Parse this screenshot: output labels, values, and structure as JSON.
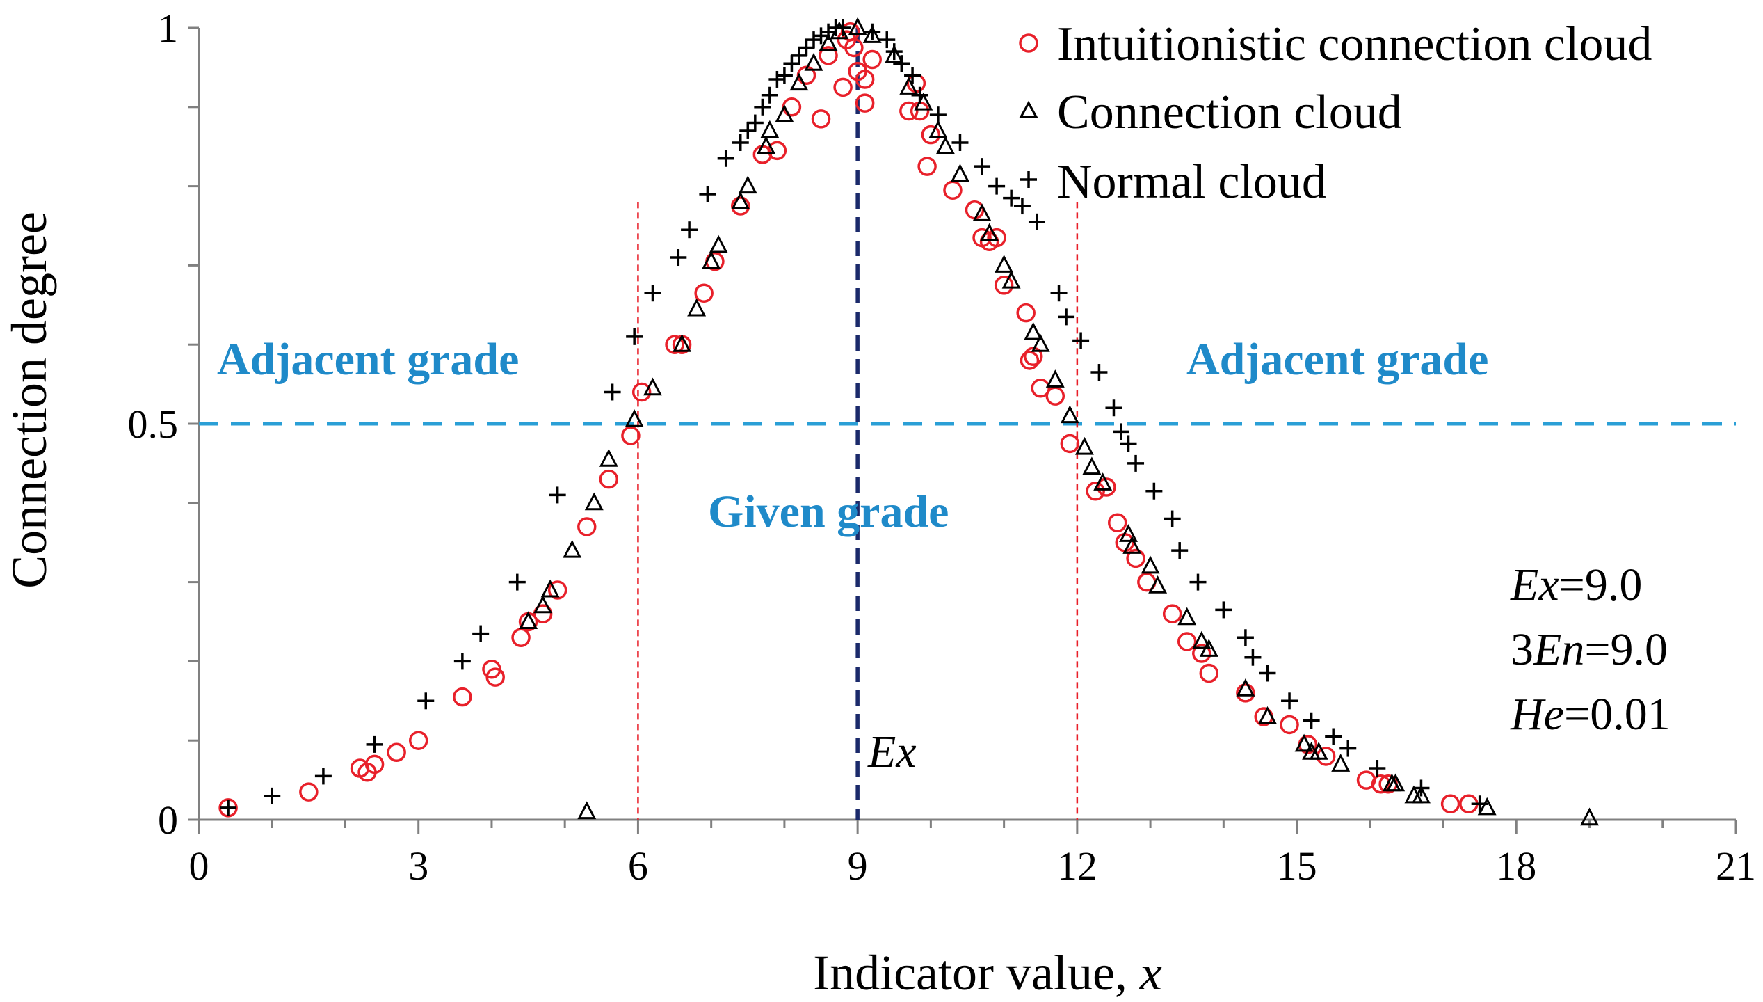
{
  "chart_data": {
    "type": "scatter",
    "title": "",
    "xlabel_main": "Indicator value, ",
    "xlabel_var": "x",
    "ylabel": "Connection degree",
    "xlim": [
      0,
      21
    ],
    "ylim": [
      0,
      1
    ],
    "x_ticks": [
      0,
      3,
      6,
      9,
      12,
      15,
      18,
      21
    ],
    "y_ticks": [
      {
        "value": 0,
        "label": "0"
      },
      {
        "value": 0.5,
        "label": "0.5"
      },
      {
        "value": 1,
        "label": "1"
      }
    ],
    "legend_position": "top-right",
    "series": [
      {
        "name": "Intuitionistic connection cloud",
        "marker": "circle",
        "color": "#e8202a",
        "points": [
          [
            0.4,
            0.015
          ],
          [
            1.5,
            0.035
          ],
          [
            2.2,
            0.065
          ],
          [
            2.3,
            0.06
          ],
          [
            2.4,
            0.07
          ],
          [
            2.7,
            0.085
          ],
          [
            3.0,
            0.1
          ],
          [
            3.6,
            0.155
          ],
          [
            4.0,
            0.19
          ],
          [
            4.05,
            0.18
          ],
          [
            4.4,
            0.23
          ],
          [
            4.5,
            0.25
          ],
          [
            4.7,
            0.26
          ],
          [
            4.9,
            0.29
          ],
          [
            5.3,
            0.37
          ],
          [
            5.6,
            0.43
          ],
          [
            5.9,
            0.485
          ],
          [
            6.05,
            0.54
          ],
          [
            6.5,
            0.6
          ],
          [
            6.6,
            0.6
          ],
          [
            6.9,
            0.665
          ],
          [
            7.05,
            0.705
          ],
          [
            7.4,
            0.775
          ],
          [
            7.7,
            0.84
          ],
          [
            7.9,
            0.845
          ],
          [
            8.1,
            0.9
          ],
          [
            8.3,
            0.94
          ],
          [
            8.5,
            0.885
          ],
          [
            8.6,
            0.965
          ],
          [
            8.8,
            0.925
          ],
          [
            8.85,
            0.985
          ],
          [
            8.9,
            0.995
          ],
          [
            8.95,
            0.975
          ],
          [
            9.0,
            0.945
          ],
          [
            9.1,
            0.935
          ],
          [
            9.1,
            0.905
          ],
          [
            9.2,
            0.96
          ],
          [
            9.7,
            0.895
          ],
          [
            9.8,
            0.93
          ],
          [
            9.85,
            0.895
          ],
          [
            9.95,
            0.825
          ],
          [
            10.0,
            0.865
          ],
          [
            10.3,
            0.795
          ],
          [
            10.6,
            0.77
          ],
          [
            10.7,
            0.735
          ],
          [
            10.8,
            0.73
          ],
          [
            10.9,
            0.735
          ],
          [
            11.0,
            0.675
          ],
          [
            11.3,
            0.64
          ],
          [
            11.35,
            0.58
          ],
          [
            11.4,
            0.585
          ],
          [
            11.5,
            0.545
          ],
          [
            11.7,
            0.535
          ],
          [
            11.9,
            0.475
          ],
          [
            12.25,
            0.415
          ],
          [
            12.4,
            0.42
          ],
          [
            12.55,
            0.375
          ],
          [
            12.65,
            0.35
          ],
          [
            12.8,
            0.33
          ],
          [
            12.95,
            0.3
          ],
          [
            13.3,
            0.26
          ],
          [
            13.5,
            0.225
          ],
          [
            13.7,
            0.21
          ],
          [
            13.8,
            0.185
          ],
          [
            14.3,
            0.16
          ],
          [
            14.55,
            0.13
          ],
          [
            14.9,
            0.12
          ],
          [
            15.15,
            0.095
          ],
          [
            15.4,
            0.08
          ],
          [
            15.95,
            0.05
          ],
          [
            16.15,
            0.045
          ],
          [
            16.25,
            0.045
          ],
          [
            17.1,
            0.02
          ],
          [
            17.35,
            0.02
          ]
        ]
      },
      {
        "name": "Connection cloud",
        "marker": "triangle",
        "color": "#000000",
        "points": [
          [
            5.3,
            0.01
          ],
          [
            4.5,
            0.25
          ],
          [
            4.7,
            0.27
          ],
          [
            4.8,
            0.29
          ],
          [
            5.1,
            0.34
          ],
          [
            5.4,
            0.4
          ],
          [
            5.6,
            0.455
          ],
          [
            5.95,
            0.505
          ],
          [
            6.2,
            0.545
          ],
          [
            6.6,
            0.6
          ],
          [
            6.8,
            0.645
          ],
          [
            7.0,
            0.705
          ],
          [
            7.1,
            0.725
          ],
          [
            7.4,
            0.78
          ],
          [
            7.5,
            0.8
          ],
          [
            7.75,
            0.85
          ],
          [
            7.8,
            0.87
          ],
          [
            8.0,
            0.89
          ],
          [
            8.2,
            0.93
          ],
          [
            8.4,
            0.955
          ],
          [
            8.6,
            0.98
          ],
          [
            8.75,
            0.995
          ],
          [
            9.0,
            1.0
          ],
          [
            9.2,
            0.99
          ],
          [
            9.5,
            0.965
          ],
          [
            9.7,
            0.925
          ],
          [
            9.9,
            0.905
          ],
          [
            10.1,
            0.87
          ],
          [
            10.2,
            0.85
          ],
          [
            10.4,
            0.815
          ],
          [
            10.7,
            0.765
          ],
          [
            10.8,
            0.74
          ],
          [
            11.0,
            0.7
          ],
          [
            11.1,
            0.68
          ],
          [
            11.4,
            0.615
          ],
          [
            11.5,
            0.6
          ],
          [
            11.7,
            0.555
          ],
          [
            11.9,
            0.51
          ],
          [
            12.1,
            0.47
          ],
          [
            12.2,
            0.445
          ],
          [
            12.35,
            0.425
          ],
          [
            12.7,
            0.36
          ],
          [
            12.75,
            0.345
          ],
          [
            13.0,
            0.32
          ],
          [
            13.1,
            0.295
          ],
          [
            13.5,
            0.255
          ],
          [
            13.7,
            0.225
          ],
          [
            13.8,
            0.215
          ],
          [
            14.3,
            0.165
          ],
          [
            14.6,
            0.13
          ],
          [
            15.1,
            0.095
          ],
          [
            15.2,
            0.085
          ],
          [
            15.3,
            0.085
          ],
          [
            15.6,
            0.07
          ],
          [
            16.3,
            0.045
          ],
          [
            16.35,
            0.045
          ],
          [
            16.6,
            0.03
          ],
          [
            16.7,
            0.03
          ],
          [
            17.6,
            0.015
          ],
          [
            19.0,
            0.002
          ]
        ]
      },
      {
        "name": "Normal cloud",
        "marker": "plus",
        "color": "#000000",
        "points": [
          [
            0.4,
            0.015
          ],
          [
            1.0,
            0.03
          ],
          [
            1.7,
            0.055
          ],
          [
            2.4,
            0.095
          ],
          [
            3.1,
            0.15
          ],
          [
            3.6,
            0.2
          ],
          [
            3.85,
            0.235
          ],
          [
            4.35,
            0.3
          ],
          [
            4.9,
            0.41
          ],
          [
            5.65,
            0.54
          ],
          [
            5.95,
            0.61
          ],
          [
            6.2,
            0.665
          ],
          [
            6.55,
            0.71
          ],
          [
            6.7,
            0.745
          ],
          [
            6.95,
            0.79
          ],
          [
            7.2,
            0.835
          ],
          [
            7.4,
            0.855
          ],
          [
            7.5,
            0.87
          ],
          [
            7.6,
            0.88
          ],
          [
            7.7,
            0.9
          ],
          [
            7.8,
            0.915
          ],
          [
            7.9,
            0.935
          ],
          [
            8.0,
            0.94
          ],
          [
            8.1,
            0.955
          ],
          [
            8.2,
            0.965
          ],
          [
            8.3,
            0.975
          ],
          [
            8.4,
            0.985
          ],
          [
            8.5,
            0.99
          ],
          [
            8.6,
            0.995
          ],
          [
            8.7,
            1.0
          ],
          [
            8.8,
            1.0
          ],
          [
            9.2,
            0.995
          ],
          [
            9.4,
            0.985
          ],
          [
            9.5,
            0.97
          ],
          [
            9.6,
            0.955
          ],
          [
            9.75,
            0.94
          ],
          [
            9.85,
            0.915
          ],
          [
            10.1,
            0.89
          ],
          [
            10.4,
            0.855
          ],
          [
            10.7,
            0.825
          ],
          [
            10.9,
            0.8
          ],
          [
            11.1,
            0.785
          ],
          [
            11.25,
            0.775
          ],
          [
            11.45,
            0.755
          ],
          [
            11.75,
            0.665
          ],
          [
            11.85,
            0.635
          ],
          [
            12.05,
            0.605
          ],
          [
            12.3,
            0.565
          ],
          [
            12.5,
            0.52
          ],
          [
            12.6,
            0.49
          ],
          [
            12.7,
            0.475
          ],
          [
            12.8,
            0.45
          ],
          [
            13.05,
            0.415
          ],
          [
            13.3,
            0.38
          ],
          [
            13.4,
            0.34
          ],
          [
            13.65,
            0.3
          ],
          [
            14.0,
            0.265
          ],
          [
            14.3,
            0.23
          ],
          [
            14.4,
            0.205
          ],
          [
            14.6,
            0.185
          ],
          [
            14.9,
            0.15
          ],
          [
            15.2,
            0.125
          ],
          [
            15.5,
            0.105
          ],
          [
            15.7,
            0.09
          ],
          [
            16.1,
            0.065
          ],
          [
            16.7,
            0.04
          ],
          [
            17.5,
            0.02
          ]
        ]
      }
    ],
    "annotations": {
      "grade_threshold": 0.5,
      "region_left": "Adjacent grade",
      "region_right": "Adjacent grade",
      "region_center": "Given grade",
      "ex_line_x": 9,
      "ex_label": "Ex",
      "bound_lines_x": [
        6,
        12
      ],
      "bound_line_top": 0.78,
      "params": [
        {
          "var": "Ex",
          "prefix": "",
          "value": "=9.0"
        },
        {
          "var": "En",
          "prefix": "3",
          "value": "=9.0"
        },
        {
          "var": "He",
          "prefix": "",
          "value": "=0.01"
        }
      ]
    },
    "colors": {
      "circle": "#e8202a",
      "threshold_line": "#2a9fd6",
      "ex_line": "#1b2a6b",
      "bound_line": "#e8202a"
    }
  }
}
